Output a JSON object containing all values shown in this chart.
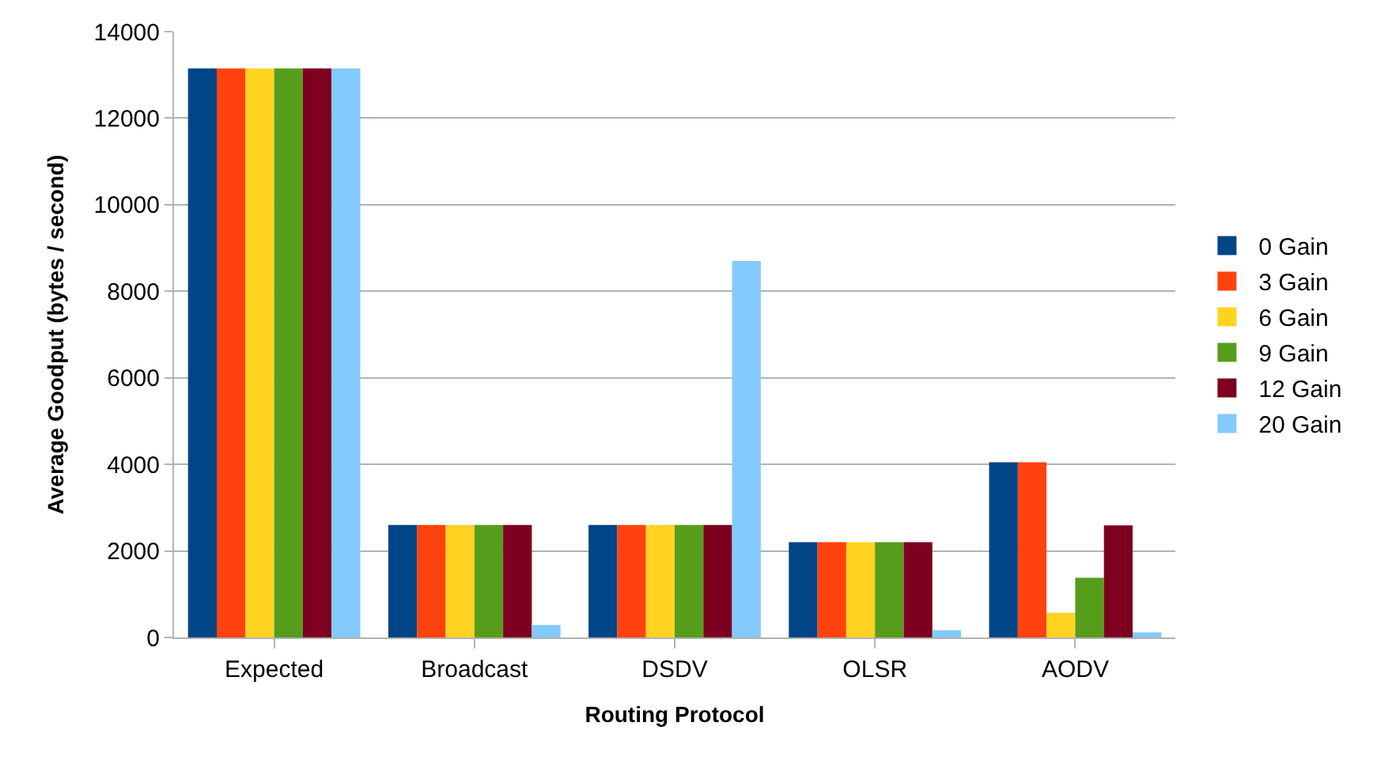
{
  "chart_data": {
    "type": "bar",
    "xlabel": "Routing Protocol",
    "ylabel": "Average Goodput (bytes / second)",
    "categories": [
      "Expected",
      "Broadcast",
      "DSDV",
      "OLSR",
      "AODV"
    ],
    "series": [
      {
        "name": "0 Gain",
        "color": "#004586",
        "values": [
          13150,
          2600,
          2600,
          2200,
          4050
        ]
      },
      {
        "name": "3 Gain",
        "color": "#ff420e",
        "values": [
          13150,
          2600,
          2600,
          2200,
          4050
        ]
      },
      {
        "name": "6 Gain",
        "color": "#ffd320",
        "values": [
          13150,
          2600,
          2600,
          2200,
          570
        ]
      },
      {
        "name": "9 Gain",
        "color": "#579d1c",
        "values": [
          13150,
          2600,
          2600,
          2200,
          1380
        ]
      },
      {
        "name": "12 Gain",
        "color": "#7e0021",
        "values": [
          13150,
          2600,
          2600,
          2200,
          2590
        ]
      },
      {
        "name": "20 Gain",
        "color": "#83caff",
        "values": [
          13150,
          290,
          8700,
          170,
          120
        ]
      }
    ],
    "ylim": [
      0,
      14000
    ],
    "yticks": [
      0,
      2000,
      4000,
      6000,
      8000,
      10000,
      12000,
      14000
    ],
    "grid": "y",
    "legend": "right"
  }
}
